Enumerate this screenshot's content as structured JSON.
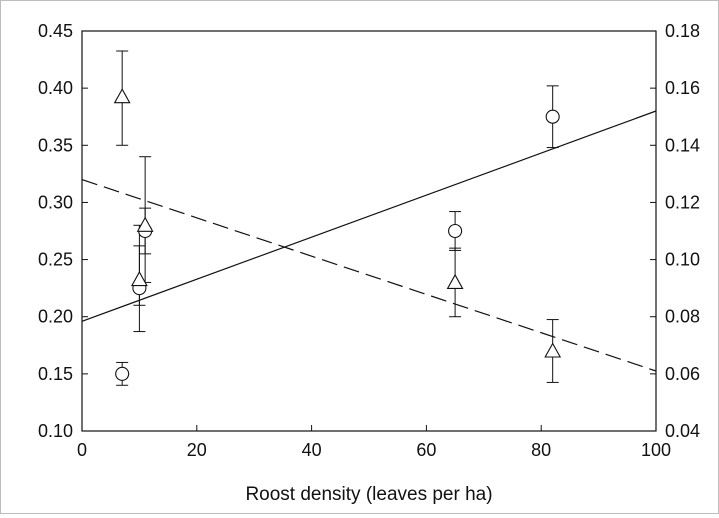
{
  "chart_data": {
    "type": "scatter",
    "title": "",
    "xlabel": "Roost density (leaves per ha)",
    "ylabel_left": "",
    "ylabel_right": "",
    "xlim": [
      0,
      100
    ],
    "ylim_left": [
      0.1,
      0.45
    ],
    "ylim_right": [
      0.04,
      0.18
    ],
    "x_ticks": [
      "0",
      "20",
      "40",
      "60",
      "80",
      "100"
    ],
    "y_left_ticks": [
      "0.10",
      "0.15",
      "0.20",
      "0.25",
      "0.30",
      "0.35",
      "0.40",
      "0.45"
    ],
    "y_right_ticks": [
      "0.04",
      "0.06",
      "0.08",
      "0.10",
      "0.12",
      "0.14",
      "0.16",
      "0.18"
    ],
    "grid": false,
    "legend": "none",
    "series": [
      {
        "marker": "circle",
        "axis": "left",
        "points": [
          {
            "x": 7,
            "y": 0.15,
            "err_low": 0.14,
            "err_high": 0.16
          },
          {
            "x": 10,
            "y": 0.225,
            "err_low": 0.187,
            "err_high": 0.262
          },
          {
            "x": 11,
            "y": 0.275,
            "err_low": 0.255,
            "err_high": 0.295
          },
          {
            "x": 65,
            "y": 0.275,
            "err_low": 0.258,
            "err_high": 0.292
          },
          {
            "x": 82,
            "y": 0.375,
            "err_low": 0.348,
            "err_high": 0.402
          }
        ],
        "trend": {
          "style": "solid",
          "x": [
            0,
            100
          ],
          "y": [
            0.196,
            0.38
          ]
        }
      },
      {
        "marker": "triangle",
        "axis": "right",
        "points": [
          {
            "x": 7,
            "y": 0.157,
            "err_low": 0.14,
            "err_high": 0.173
          },
          {
            "x": 10,
            "y": 0.093,
            "err_low": 0.084,
            "err_high": 0.112
          },
          {
            "x": 11,
            "y": 0.112,
            "err_low": 0.092,
            "err_high": 0.136
          },
          {
            "x": 65,
            "y": 0.092,
            "err_low": 0.08,
            "err_high": 0.104
          },
          {
            "x": 82,
            "y": 0.068,
            "err_low": 0.057,
            "err_high": 0.079
          }
        ],
        "trend": {
          "style": "dashed",
          "x": [
            0,
            100
          ],
          "y": [
            0.128,
            0.061
          ]
        }
      }
    ]
  }
}
